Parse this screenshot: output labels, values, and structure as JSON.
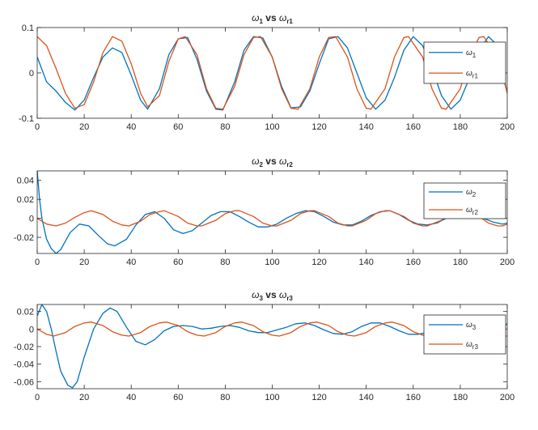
{
  "chart_data": [
    {
      "type": "line",
      "title": {
        "main": "ω",
        "main_sub": "1",
        "mid": " vs ",
        "ref": "ω",
        "ref_sub": "r1"
      },
      "xlim": [
        0,
        200
      ],
      "ylim": [
        -0.1,
        0.1
      ],
      "xticks": [
        0,
        20,
        40,
        60,
        80,
        100,
        120,
        140,
        160,
        180,
        200
      ],
      "yticks": [
        -0.1,
        0,
        0.1
      ],
      "ytick_labels": [
        "-0.1",
        "0",
        "0.1"
      ],
      "legend_position": "top-right",
      "grid": false,
      "series": [
        {
          "name": {
            "base": "ω",
            "sub": "1"
          },
          "color": "#0072BD",
          "x": [
            0,
            4,
            8,
            12,
            16,
            20,
            24,
            28,
            32,
            36,
            40,
            44,
            47,
            52,
            56,
            60,
            64,
            68,
            72,
            76,
            79,
            84,
            88,
            92,
            96,
            100,
            104,
            108,
            112,
            116,
            120,
            124,
            128,
            132,
            136,
            140,
            144,
            148,
            152,
            156,
            160,
            164,
            168,
            172,
            176,
            180,
            184,
            188,
            192,
            196,
            200
          ],
          "y": [
            0.035,
            -0.02,
            -0.04,
            -0.065,
            -0.082,
            -0.06,
            -0.01,
            0.035,
            0.055,
            0.045,
            -0.005,
            -0.06,
            -0.08,
            -0.035,
            0.04,
            0.075,
            0.078,
            0.03,
            -0.04,
            -0.08,
            -0.082,
            -0.02,
            0.05,
            0.08,
            0.077,
            0.035,
            -0.03,
            -0.077,
            -0.075,
            -0.04,
            0.02,
            0.075,
            0.08,
            0.055,
            0,
            -0.055,
            -0.08,
            -0.06,
            -0.01,
            0.05,
            0.08,
            0.06,
            0.01,
            -0.05,
            -0.08,
            -0.06,
            -0.01,
            0.05,
            0.08,
            0.06,
            -0.045
          ]
        },
        {
          "name": {
            "base": "ω",
            "sub": "r1"
          },
          "color": "#D95319",
          "x": [
            0,
            4,
            8,
            12,
            16,
            20,
            24,
            28,
            32,
            36,
            40,
            44,
            47,
            52,
            56,
            60,
            63,
            68,
            72,
            76,
            79,
            84,
            88,
            92,
            95,
            100,
            104,
            108,
            111,
            116,
            120,
            124,
            127,
            132,
            136,
            140,
            142,
            148,
            152,
            156,
            158,
            164,
            168,
            172,
            174,
            180,
            184,
            188,
            190,
            196,
            200
          ],
          "y": [
            0.08,
            0.06,
            0.01,
            -0.045,
            -0.078,
            -0.07,
            -0.02,
            0.045,
            0.08,
            0.07,
            0.02,
            -0.045,
            -0.075,
            -0.05,
            0.025,
            0.075,
            0.08,
            0.04,
            -0.035,
            -0.078,
            -0.08,
            -0.03,
            0.04,
            0.078,
            0.08,
            0.035,
            -0.035,
            -0.078,
            -0.08,
            -0.035,
            0.035,
            0.078,
            0.08,
            0.035,
            -0.035,
            -0.078,
            -0.08,
            -0.035,
            0.035,
            0.078,
            0.08,
            0.035,
            -0.035,
            -0.078,
            -0.08,
            -0.035,
            0.035,
            0.078,
            0.08,
            0.035,
            -0.045
          ]
        }
      ]
    },
    {
      "type": "line",
      "title": {
        "main": "ω",
        "main_sub": "2",
        "mid": " vs ",
        "ref": "ω",
        "ref_sub": "r2"
      },
      "xlim": [
        0,
        200
      ],
      "ylim": [
        -0.037,
        0.05
      ],
      "xticks": [
        0,
        20,
        40,
        60,
        80,
        100,
        120,
        140,
        160,
        180,
        200
      ],
      "yticks": [
        -0.02,
        0,
        0.02,
        0.04
      ],
      "ytick_labels": [
        "-0.02",
        "0",
        "0.02",
        "0.04"
      ],
      "legend_position": "top-right",
      "grid": false,
      "series": [
        {
          "name": {
            "base": "ω",
            "sub": "2"
          },
          "color": "#0072BD",
          "x": [
            0,
            1,
            2,
            4,
            6,
            8,
            10,
            14,
            18,
            22,
            26,
            30,
            33,
            38,
            42,
            46,
            50,
            54,
            58,
            62,
            66,
            70,
            74,
            78,
            82,
            86,
            90,
            94,
            98,
            102,
            106,
            110,
            114,
            118,
            122,
            126,
            130,
            134,
            138,
            142,
            146,
            150,
            154,
            158,
            162,
            166,
            170,
            174,
            178,
            182,
            186,
            190,
            194,
            198,
            200
          ],
          "y": [
            0.05,
            0.02,
            0.0,
            -0.022,
            -0.032,
            -0.037,
            -0.033,
            -0.015,
            -0.006,
            -0.008,
            -0.018,
            -0.027,
            -0.029,
            -0.022,
            -0.007,
            0.004,
            0.007,
            0.0,
            -0.012,
            -0.016,
            -0.013,
            -0.005,
            0.003,
            0.007,
            0.007,
            0.002,
            -0.004,
            -0.009,
            -0.009,
            -0.006,
            0.0,
            0.005,
            0.008,
            0.007,
            0.002,
            -0.004,
            -0.007,
            -0.007,
            -0.003,
            0.003,
            0.007,
            0.008,
            0.004,
            -0.002,
            -0.006,
            -0.007,
            -0.005,
            0.0,
            0.005,
            0.007,
            0.005,
            0.0,
            -0.004,
            -0.006,
            -0.005
          ]
        },
        {
          "name": {
            "base": "ω",
            "sub": "r2"
          },
          "color": "#D95319",
          "x": [
            0,
            4,
            8,
            12,
            16,
            20,
            23,
            28,
            32,
            36,
            39,
            44,
            48,
            52,
            54,
            60,
            64,
            68,
            70,
            76,
            80,
            84,
            86,
            92,
            96,
            100,
            102,
            108,
            112,
            116,
            118,
            124,
            128,
            132,
            134,
            140,
            144,
            148,
            150,
            156,
            160,
            164,
            166,
            172,
            176,
            180,
            182,
            188,
            192,
            196,
            198,
            200
          ],
          "y": [
            0.0,
            -0.006,
            -0.008,
            -0.005,
            0.001,
            0.006,
            0.008,
            0.004,
            -0.003,
            -0.007,
            -0.008,
            -0.003,
            0.004,
            0.007,
            0.008,
            0.002,
            -0.005,
            -0.008,
            -0.008,
            -0.002,
            0.005,
            0.008,
            0.008,
            0.002,
            -0.005,
            -0.008,
            -0.008,
            -0.002,
            0.005,
            0.008,
            0.008,
            0.002,
            -0.005,
            -0.008,
            -0.008,
            -0.002,
            0.005,
            0.008,
            0.008,
            0.002,
            -0.005,
            -0.008,
            -0.008,
            -0.002,
            0.005,
            0.008,
            0.008,
            0.002,
            -0.005,
            -0.008,
            -0.008,
            -0.006
          ]
        }
      ]
    },
    {
      "type": "line",
      "title": {
        "main": "ω",
        "main_sub": "3",
        "mid": " vs ",
        "ref": "ω",
        "ref_sub": "r3"
      },
      "xlim": [
        0,
        200
      ],
      "ylim": [
        -0.068,
        0.028
      ],
      "xticks": [
        0,
        20,
        40,
        60,
        80,
        100,
        120,
        140,
        160,
        180,
        200
      ],
      "yticks": [
        -0.06,
        -0.04,
        -0.02,
        0,
        0.02
      ],
      "ytick_labels": [
        "-0.06",
        "-0.04",
        "-0.02",
        "0",
        "0.02"
      ],
      "legend_position": "top-right",
      "grid": false,
      "series": [
        {
          "name": {
            "base": "ω",
            "sub": "3"
          },
          "color": "#0072BD",
          "x": [
            0,
            2,
            4,
            6,
            8,
            10,
            13,
            15,
            17,
            20,
            24,
            28,
            31,
            34,
            38,
            42,
            46,
            50,
            54,
            58,
            62,
            66,
            70,
            74,
            78,
            82,
            86,
            90,
            94,
            98,
            102,
            106,
            110,
            114,
            118,
            122,
            126,
            130,
            134,
            138,
            142,
            146,
            150,
            154,
            158,
            162,
            166,
            170,
            174,
            178,
            182,
            186,
            190,
            194,
            198,
            200
          ],
          "y": [
            0.015,
            0.028,
            0.02,
            0.0,
            -0.025,
            -0.048,
            -0.064,
            -0.067,
            -0.06,
            -0.032,
            0.0,
            0.018,
            0.024,
            0.02,
            0.002,
            -0.014,
            -0.018,
            -0.012,
            -0.002,
            0.003,
            0.004,
            0.003,
            0.0,
            0.001,
            0.003,
            0.004,
            0.002,
            -0.002,
            -0.004,
            -0.004,
            -0.001,
            0.002,
            0.006,
            0.007,
            0.004,
            -0.001,
            -0.005,
            -0.006,
            -0.003,
            0.003,
            0.007,
            0.007,
            0.003,
            -0.002,
            -0.006,
            -0.006,
            -0.004,
            0.0,
            0.004,
            0.006,
            0.005,
            0.001,
            -0.003,
            -0.005,
            0.002,
            0.006
          ]
        },
        {
          "name": {
            "base": "ω",
            "sub": "r3"
          },
          "color": "#D95319",
          "x": [
            0,
            4,
            7,
            12,
            16,
            20,
            23,
            28,
            32,
            36,
            39,
            44,
            48,
            52,
            55,
            60,
            64,
            68,
            71,
            76,
            80,
            84,
            87,
            92,
            96,
            100,
            103,
            108,
            112,
            116,
            119,
            124,
            128,
            132,
            135,
            140,
            144,
            148,
            151,
            156,
            160,
            164,
            167,
            172,
            176,
            180,
            183,
            188,
            192,
            196,
            199,
            200
          ],
          "y": [
            0.0,
            -0.006,
            -0.008,
            -0.004,
            0.003,
            0.007,
            0.008,
            0.004,
            -0.003,
            -0.007,
            -0.008,
            -0.004,
            0.003,
            0.007,
            0.008,
            0.004,
            -0.003,
            -0.007,
            -0.008,
            -0.004,
            0.003,
            0.007,
            0.008,
            0.004,
            -0.003,
            -0.007,
            -0.008,
            -0.004,
            0.003,
            0.007,
            0.008,
            0.004,
            -0.003,
            -0.007,
            -0.008,
            -0.004,
            0.003,
            0.007,
            0.008,
            0.004,
            -0.003,
            -0.007,
            -0.008,
            -0.004,
            0.003,
            0.007,
            0.008,
            0.004,
            -0.003,
            -0.007,
            -0.008,
            -0.008
          ]
        }
      ]
    }
  ]
}
